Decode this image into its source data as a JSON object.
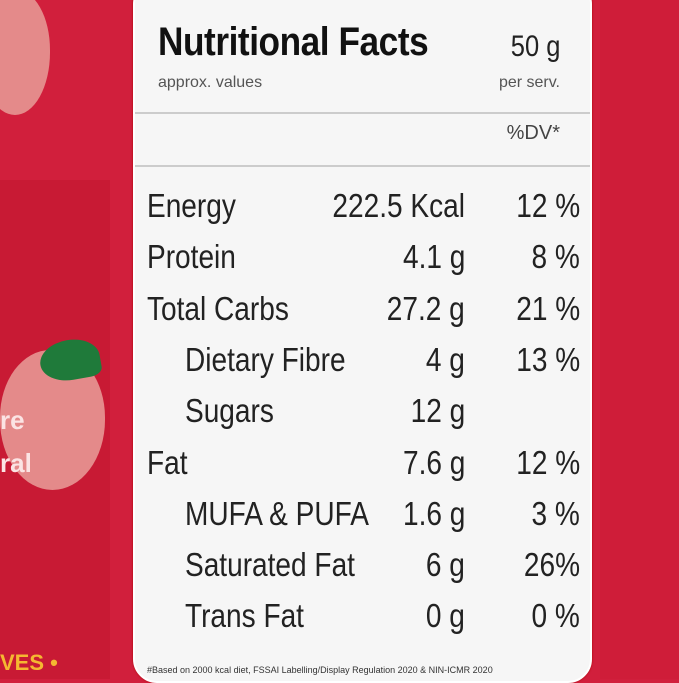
{
  "label": {
    "title": "Nutritional Facts",
    "serving": "50 g",
    "approx": "approx. values",
    "per_serving": "per serv.",
    "dv_header": "%DV*",
    "rows": [
      {
        "name": "Energy",
        "amount": "222.5 Kcal",
        "dv": "12 %",
        "indent": false
      },
      {
        "name": "Protein",
        "amount": "4.1 g",
        "dv": "8 %",
        "indent": false
      },
      {
        "name": "Total Carbs",
        "amount": "27.2 g",
        "dv": "21 %",
        "indent": false
      },
      {
        "name": "Dietary Fibre",
        "amount": "4 g",
        "dv": "13 %",
        "indent": true
      },
      {
        "name": "Sugars",
        "amount": "12 g",
        "dv": "",
        "indent": true
      },
      {
        "name": "Fat",
        "amount": "7.6 g",
        "dv": "12 %",
        "indent": false
      },
      {
        "name": "MUFA & PUFA",
        "amount": "1.6 g",
        "dv": "3 %",
        "indent": true
      },
      {
        "name": "Saturated Fat",
        "amount": "6 g",
        "dv": "26%",
        "indent": true
      },
      {
        "name": "Trans Fat",
        "amount": "0 g",
        "dv": "0 %",
        "indent": true
      }
    ],
    "footnote": "#Based on 2000 kcal diet, FSSAI Labelling/Display Regulation 2020 & NIN-ICMR 2020"
  },
  "side": {
    "text1": "re",
    "text2": "ral",
    "bottom": "VES •"
  },
  "colors": {
    "background": "#d11f3c",
    "card": "#f6f6f6",
    "strawberry": "#e48a8a",
    "leaf": "#1f7a3a"
  }
}
